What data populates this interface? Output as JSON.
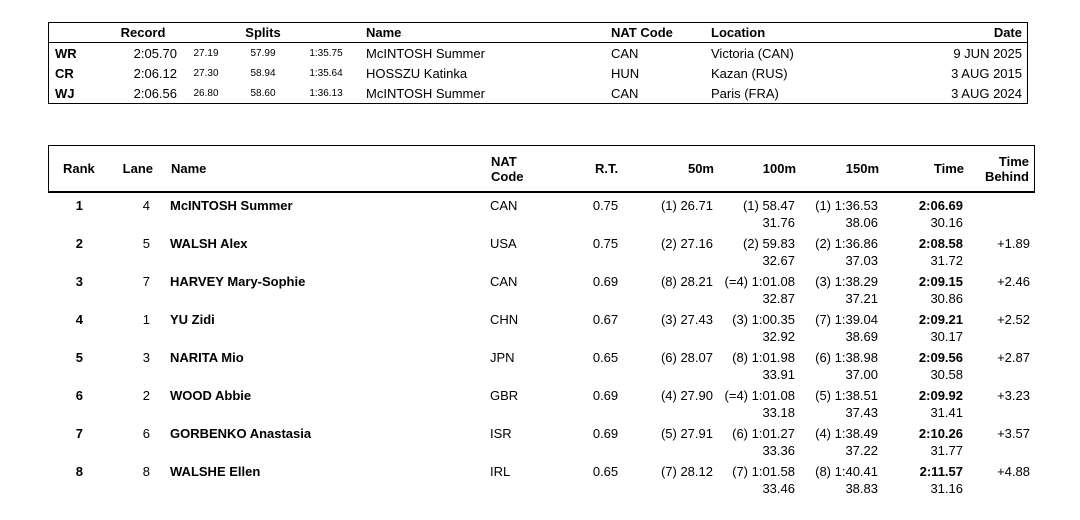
{
  "colors": {
    "background": "#ffffff",
    "text": "#000000",
    "border": "#000000"
  },
  "records_table": {
    "headers": {
      "record": "Record",
      "splits": "Splits",
      "name": "Name",
      "nat_code": "NAT Code",
      "location": "Location",
      "date": "Date"
    },
    "rows": [
      {
        "label": "WR",
        "time": "2:05.70",
        "split1": "27.19",
        "split2": "57.99",
        "split3": "1:35.75",
        "name": "McINTOSH Summer",
        "nat": "CAN",
        "location": "Victoria (CAN)",
        "date": "9 JUN 2025"
      },
      {
        "label": "CR",
        "time": "2:06.12",
        "split1": "27.30",
        "split2": "58.94",
        "split3": "1:35.64",
        "name": "HOSSZU Katinka",
        "nat": "HUN",
        "location": "Kazan (RUS)",
        "date": "3 AUG 2015"
      },
      {
        "label": "WJ",
        "time": "2:06.56",
        "split1": "26.80",
        "split2": "58.60",
        "split3": "1:36.13",
        "name": "McINTOSH Summer",
        "nat": "CAN",
        "location": "Paris (FRA)",
        "date": "3 AUG 2024"
      }
    ]
  },
  "results_table": {
    "headers": {
      "rank": "Rank",
      "lane": "Lane",
      "name": "Name",
      "nat_code_line1": "NAT",
      "nat_code_line2": "Code",
      "rt": "R.T.",
      "m50": "50m",
      "m100": "100m",
      "m150": "150m",
      "time": "Time",
      "behind_line1": "Time",
      "behind_line2": "Behind"
    },
    "rows": [
      {
        "rank": "1",
        "lane": "4",
        "name": "McINTOSH Summer",
        "nat": "CAN",
        "rt": "0.75",
        "m50": "(1) 26.71",
        "m100": "(1) 58.47",
        "m100_split": "31.76",
        "m150": "(1) 1:36.53",
        "m150_split": "38.06",
        "time": "2:06.69",
        "final_split": "30.16",
        "behind": ""
      },
      {
        "rank": "2",
        "lane": "5",
        "name": "WALSH Alex",
        "nat": "USA",
        "rt": "0.75",
        "m50": "(2) 27.16",
        "m100": "(2) 59.83",
        "m100_split": "32.67",
        "m150": "(2) 1:36.86",
        "m150_split": "37.03",
        "time": "2:08.58",
        "final_split": "31.72",
        "behind": "+1.89"
      },
      {
        "rank": "3",
        "lane": "7",
        "name": "HARVEY Mary-Sophie",
        "nat": "CAN",
        "rt": "0.69",
        "m50": "(8) 28.21",
        "m100": "(=4) 1:01.08",
        "m100_split": "32.87",
        "m150": "(3) 1:38.29",
        "m150_split": "37.21",
        "time": "2:09.15",
        "final_split": "30.86",
        "behind": "+2.46"
      },
      {
        "rank": "4",
        "lane": "1",
        "name": "YU Zidi",
        "nat": "CHN",
        "rt": "0.67",
        "m50": "(3) 27.43",
        "m100": "(3) 1:00.35",
        "m100_split": "32.92",
        "m150": "(7) 1:39.04",
        "m150_split": "38.69",
        "time": "2:09.21",
        "final_split": "30.17",
        "behind": "+2.52"
      },
      {
        "rank": "5",
        "lane": "3",
        "name": "NARITA Mio",
        "nat": "JPN",
        "rt": "0.65",
        "m50": "(6) 28.07",
        "m100": "(8) 1:01.98",
        "m100_split": "33.91",
        "m150": "(6) 1:38.98",
        "m150_split": "37.00",
        "time": "2:09.56",
        "final_split": "30.58",
        "behind": "+2.87"
      },
      {
        "rank": "6",
        "lane": "2",
        "name": "WOOD Abbie",
        "nat": "GBR",
        "rt": "0.69",
        "m50": "(4) 27.90",
        "m100": "(=4) 1:01.08",
        "m100_split": "33.18",
        "m150": "(5) 1:38.51",
        "m150_split": "37.43",
        "time": "2:09.92",
        "final_split": "31.41",
        "behind": "+3.23"
      },
      {
        "rank": "7",
        "lane": "6",
        "name": "GORBENKO Anastasia",
        "nat": "ISR",
        "rt": "0.69",
        "m50": "(5) 27.91",
        "m100": "(6) 1:01.27",
        "m100_split": "33.36",
        "m150": "(4) 1:38.49",
        "m150_split": "37.22",
        "time": "2:10.26",
        "final_split": "31.77",
        "behind": "+3.57"
      },
      {
        "rank": "8",
        "lane": "8",
        "name": "WALSHE Ellen",
        "nat": "IRL",
        "rt": "0.65",
        "m50": "(7) 28.12",
        "m100": "(7) 1:01.58",
        "m100_split": "33.46",
        "m150": "(8) 1:40.41",
        "m150_split": "38.83",
        "time": "2:11.57",
        "final_split": "31.16",
        "behind": "+4.88"
      }
    ]
  }
}
